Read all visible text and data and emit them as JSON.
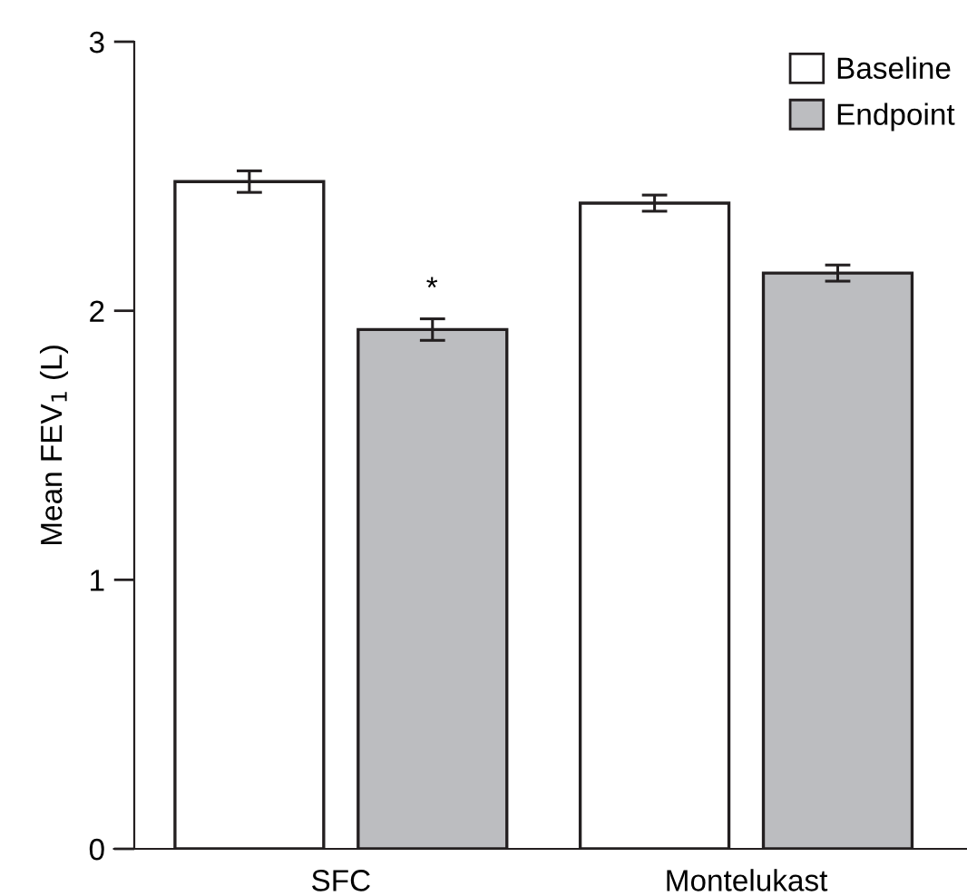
{
  "chart_data": {
    "type": "bar",
    "ylabel": "Mean FEV$_{1}$ (L)",
    "categories": [
      "SFC",
      "Montelukast"
    ],
    "series": [
      {
        "name": "Baseline",
        "color": "#ffffff",
        "values": [
          2.48,
          2.4
        ],
        "errors": [
          0.04,
          0.03
        ]
      },
      {
        "name": "Endpoint",
        "color": "#bcbdc0",
        "values": [
          1.93,
          2.14
        ],
        "errors": [
          0.04,
          0.03
        ]
      }
    ],
    "ylim": [
      0,
      3
    ],
    "yticks": [
      0,
      1,
      2,
      3
    ],
    "legend": "top right",
    "grid": false,
    "annotations": [
      "*"
    ]
  }
}
